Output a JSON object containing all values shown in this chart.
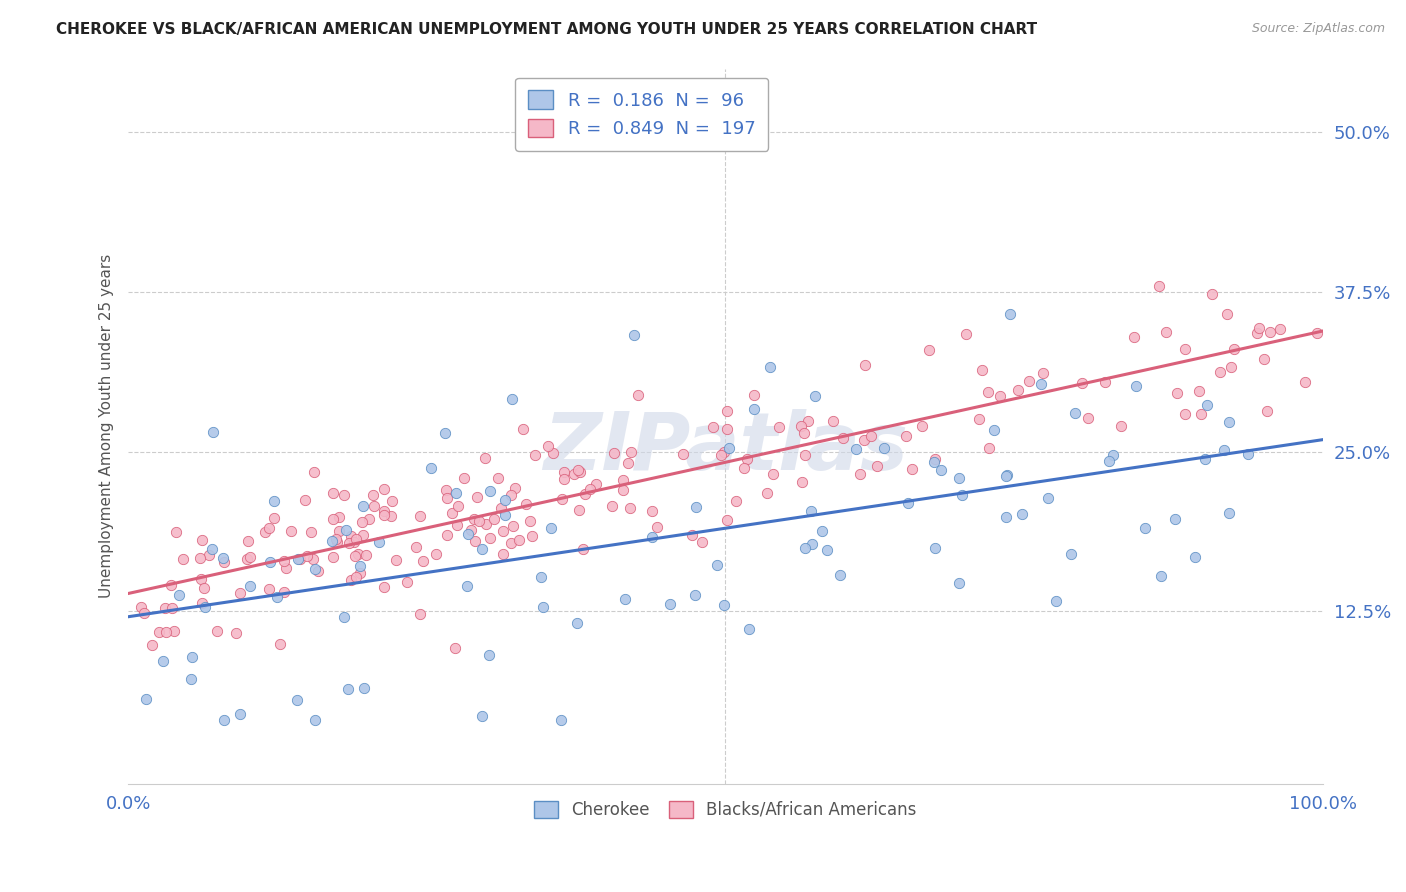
{
  "title": "CHEROKEE VS BLACK/AFRICAN AMERICAN UNEMPLOYMENT AMONG YOUTH UNDER 25 YEARS CORRELATION CHART",
  "source": "Source: ZipAtlas.com",
  "ylabel": "Unemployment Among Youth under 25 years",
  "ytick_values": [
    0.125,
    0.25,
    0.375,
    0.5
  ],
  "xlim": [
    0.0,
    1.0
  ],
  "ylim": [
    -0.01,
    0.55
  ],
  "cherokee_R": 0.186,
  "cherokee_N": 96,
  "black_R": 0.849,
  "black_N": 197,
  "cherokee_color": "#aec6e8",
  "black_color": "#f5b8c8",
  "cherokee_edge_color": "#5b8ec4",
  "black_edge_color": "#d9607a",
  "cherokee_line_color": "#4472c4",
  "black_line_color": "#d9607a",
  "legend_label_cherokee": "Cherokee",
  "legend_label_black": "Blacks/African Americans",
  "title_color": "#222222",
  "tick_label_color": "#4472c4",
  "ylabel_color": "#555555",
  "watermark_color": "#d0d8e8",
  "watermark_text": "ZIPatlas",
  "background_color": "#ffffff",
  "grid_color": "#cccccc",
  "legend_R_color": "#4472c4"
}
